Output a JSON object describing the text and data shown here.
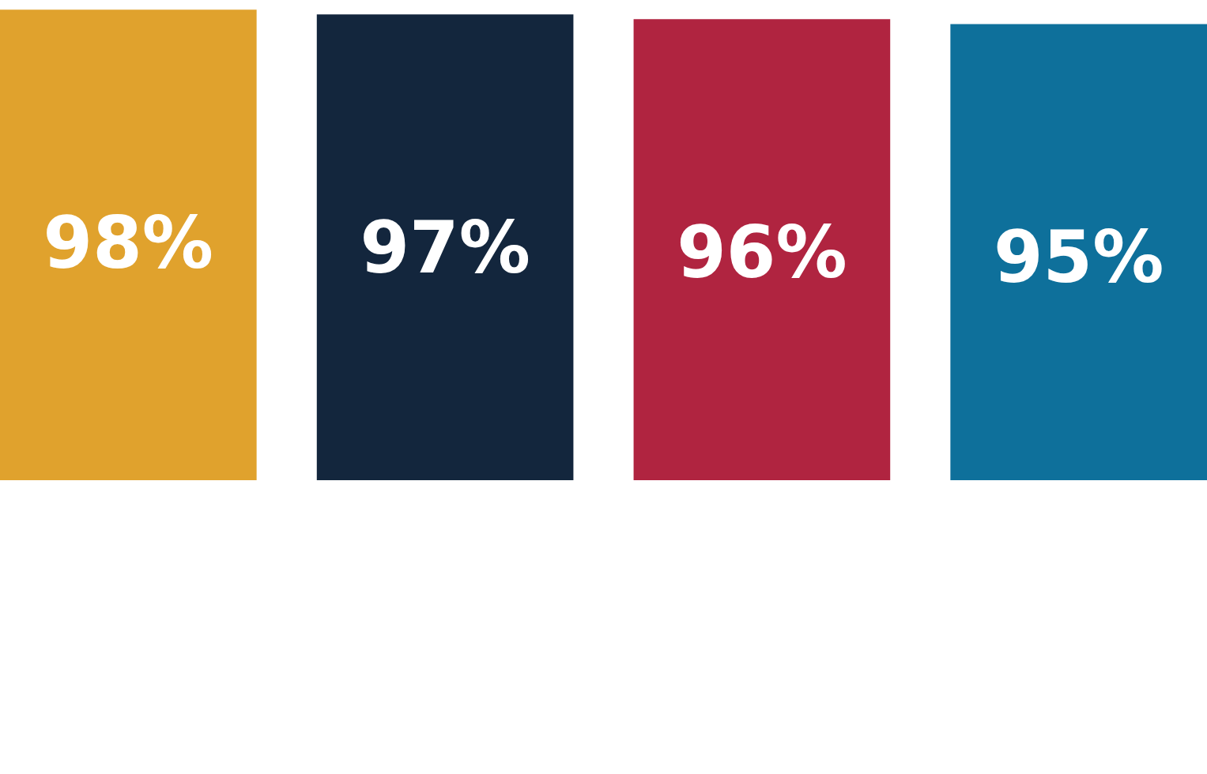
{
  "chart_data": {
    "type": "bar",
    "categories": [
      null,
      null,
      null,
      null
    ],
    "values": [
      98,
      97,
      96,
      95
    ],
    "colors": [
      "#e0a22d",
      "#13263d",
      "#b02440",
      "#0e709b"
    ],
    "value_labels": [
      "98%",
      "97%",
      "96%",
      "95%"
    ]
  }
}
